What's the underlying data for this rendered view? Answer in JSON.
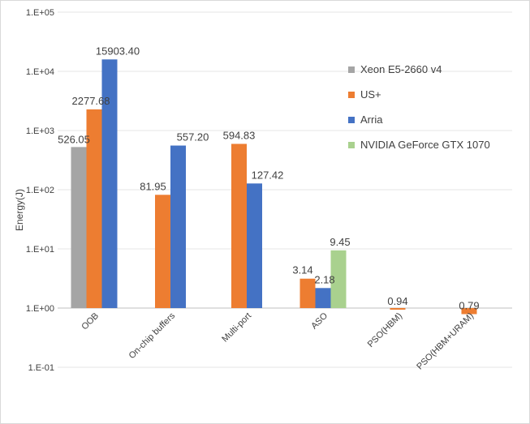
{
  "chart_data": {
    "type": "bar",
    "title": "",
    "xlabel": "",
    "ylabel": "Energy(J)",
    "yscale": "log",
    "ylim": [
      0.1,
      100000
    ],
    "yticks": [
      "1.E-01",
      "1.E+00",
      "1.E+01",
      "1.E+02",
      "1.E+03",
      "1.E+04",
      "1.E+05"
    ],
    "grid": true,
    "legend_position": "right",
    "categories": [
      "OOB",
      "On-chip buffers",
      "Multi-port",
      "ASO",
      "PSO(HBM)",
      "PSO(HBM+URAM)"
    ],
    "series": [
      {
        "name": "Xeon E5-2660 v4",
        "color": "#a5a5a5",
        "values": [
          526.05,
          null,
          null,
          null,
          null,
          null
        ],
        "labels": [
          "526.05",
          null,
          null,
          null,
          null,
          null
        ]
      },
      {
        "name": "US+",
        "color": "#ed7d31",
        "values": [
          2277.68,
          81.95,
          594.83,
          3.14,
          0.94,
          0.79
        ],
        "labels": [
          "2277.68",
          "81.95",
          "594.83",
          "3.14",
          "0.94",
          "0.79"
        ]
      },
      {
        "name": "Arria",
        "color": "#4472c4",
        "values": [
          15903.4,
          557.2,
          127.42,
          2.18,
          null,
          null
        ],
        "labels": [
          "15903.40",
          "557.20",
          "127.42",
          "2.18",
          null,
          null
        ]
      },
      {
        "name": "NVIDIA GeForce GTX 1070",
        "color": "#a9d18e",
        "values": [
          null,
          null,
          null,
          9.45,
          null,
          null
        ],
        "labels": [
          null,
          null,
          null,
          "9.45",
          null,
          null
        ]
      }
    ]
  }
}
